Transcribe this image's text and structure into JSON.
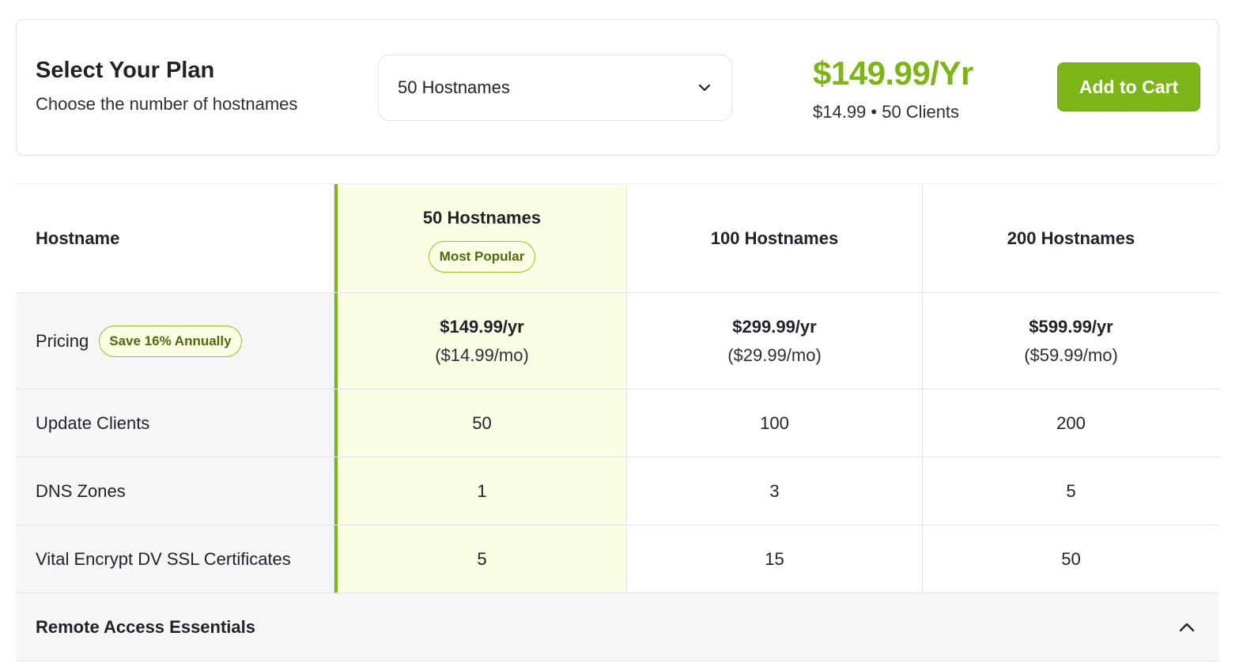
{
  "plan": {
    "title": "Select Your Plan",
    "subtitle": "Choose the number of hostnames",
    "selected_option": "50 Hostnames",
    "price": "$149.99/Yr",
    "price_detail": "$14.99 • 50 Clients",
    "cart_label": "Add to Cart",
    "accent_color": "#7cb518"
  },
  "table": {
    "header_label": "Hostname",
    "columns": [
      {
        "title": "50 Hostnames",
        "badge": "Most Popular"
      },
      {
        "title": "100 Hostnames"
      },
      {
        "title": "200 Hostnames"
      }
    ],
    "pricing": {
      "label": "Pricing",
      "badge": "Save 16% Annually",
      "values": [
        {
          "yearly": "$149.99/yr",
          "monthly": "($14.99/mo)"
        },
        {
          "yearly": "$299.99/yr",
          "monthly": "($29.99/mo)"
        },
        {
          "yearly": "$599.99/yr",
          "monthly": "($59.99/mo)"
        }
      ]
    },
    "rows": [
      {
        "label": "Update Clients",
        "values": [
          "50",
          "100",
          "200"
        ]
      },
      {
        "label": "DNS Zones",
        "values": [
          "1",
          "3",
          "5"
        ]
      },
      {
        "label": "Vital Encrypt DV SSL Certificates",
        "values": [
          "5",
          "15",
          "50"
        ]
      }
    ],
    "section": {
      "title": "Remote Access Essentials",
      "icon": "chevron-up-icon"
    }
  },
  "icons": {
    "select": "chevron-down-icon"
  }
}
